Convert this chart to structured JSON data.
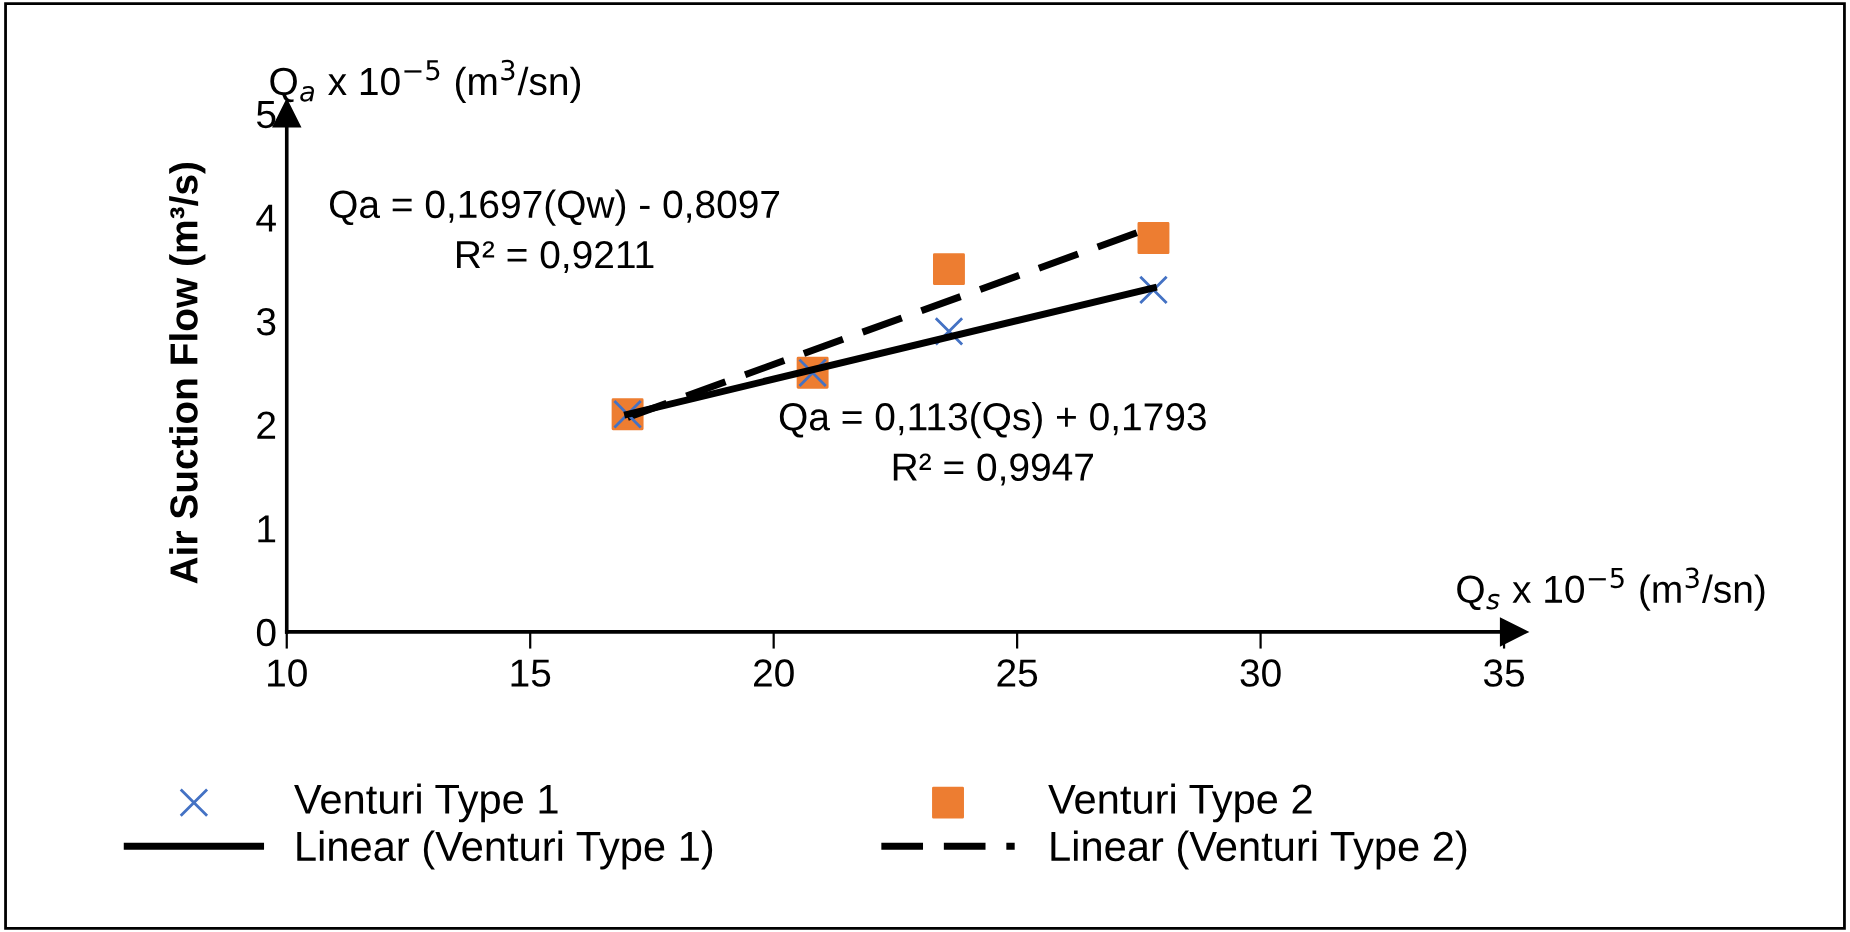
{
  "chart_data": {
    "type": "scatter",
    "ylabel": "Air Suction Flow (m³/s)",
    "annotations": [
      "Q$_{a}$ x 10$^{−5}$ (m$^{3}$/sn)",
      "Q$_{s}$ x 10$^{−5}$ (m$^{3}$/sn)",
      "Qa = 0,1697(Qw) - 0,8097\nR² = 0,9211",
      "Qa = 0,113(Qs) + 0,1793\nR² = 0,9947"
    ],
    "series": [
      {
        "name": "Venturi Type 1",
        "color": "#4472c4",
        "marker": "cross",
        "x": [
          17,
          20.8,
          23.6,
          27.8
        ],
        "values": [
          2.1,
          2.5,
          2.9,
          3.3
        ]
      },
      {
        "name": "Venturi Type 2",
        "color": "#ed7d31",
        "marker": "square",
        "x": [
          17,
          20.8,
          23.6,
          27.8
        ],
        "values": [
          2.1,
          2.5,
          3.5,
          3.8
        ]
      },
      {
        "name": "Linear (Venturi Type 1)",
        "type": "line",
        "color": "#000000",
        "line_style": "solid",
        "x": [
          17,
          27.8
        ],
        "values": [
          2.1,
          3.32
        ]
      },
      {
        "name": "Linear (Venturi Type 2)",
        "type": "line",
        "color": "#000000",
        "line_style": "dashed",
        "x": [
          17,
          27.8
        ],
        "values": [
          2.07,
          3.91
        ]
      }
    ],
    "xlim": [
      10,
      35
    ],
    "xticks": [
      10,
      15,
      20,
      25,
      30,
      35
    ],
    "ylim": [
      0,
      5
    ],
    "yticks": [
      0,
      1,
      2,
      3,
      4,
      5
    ],
    "grid": false,
    "legend": "bottom"
  }
}
